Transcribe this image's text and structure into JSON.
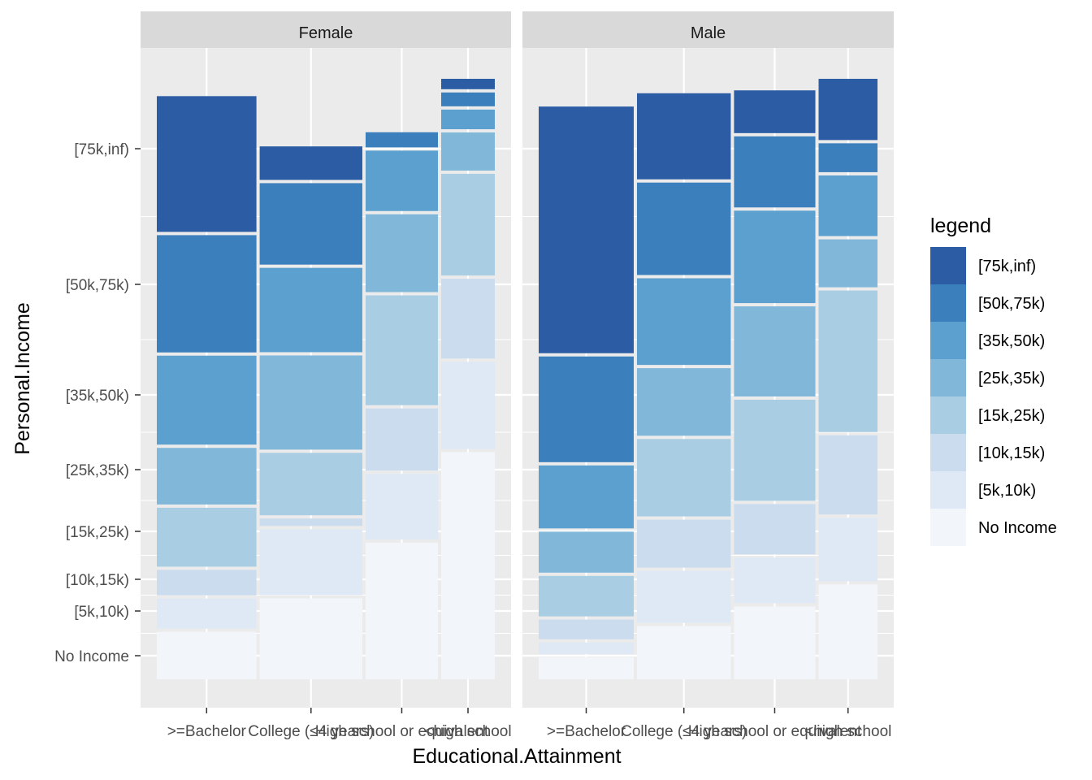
{
  "chart_data": {
    "type": "mosaic",
    "facets": [
      "Female",
      "Male"
    ],
    "xlabel": "Educational.Attainment",
    "ylabel": "Personal.Income",
    "categories": [
      ">=Bachelor",
      "College (≤4 years)",
      "High school or equivalent",
      "<high school"
    ],
    "category_labels": [
      ">=Bachelor",
      "College (≤4 years)",
      "High school or equivalent",
      "<high school"
    ],
    "income_levels": [
      "No Income",
      "[5k,10k)",
      "[10k,15k)",
      "[15k,25k)",
      "[25k,35k)",
      "[35k,50k)",
      "[50k,75k)",
      "[75k,inf)"
    ],
    "y_tick_labels": [
      "No Income",
      "[5k,10k)",
      "[10k,15k)",
      "[15k,25k)",
      "[25k,35k)",
      "[35k,50k)",
      "[50k,75k)",
      "[75k,inf)"
    ],
    "legend": {
      "title": "legend",
      "placement": "right",
      "entries": [
        "[75k,inf)",
        "[50k,75k)",
        "[35k,50k)",
        "[25k,35k)",
        "[15k,25k)",
        "[10k,15k)",
        "[5k,10k)",
        "No Income"
      ]
    },
    "colors": {
      "No Income": "#f2f6fa",
      "[5k,10k)": "#dfe9f5",
      "[10k,15k)": "#cbdcee",
      "[15k,25k)": "#a9cde2",
      "[25k,35k)": "#81b8da",
      "[35k,50k)": "#5ca0cf",
      "[50k,75k)": "#3b7fbd",
      "[75k,inf)": "#2b5ca4"
    },
    "panel_background": "#ebebeb",
    "strip_background": "#d9d9d9",
    "grid": true,
    "panels": [
      {
        "facet": "Female",
        "column_widths": [
          0.325,
          0.335,
          0.236,
          0.175
        ],
        "proportions": [
          [
            0.082,
            0.052,
            0.044,
            0.102,
            0.098,
            0.154,
            0.203,
            0.235
          ],
          [
            0.14,
            0.114,
            0.013,
            0.108,
            0.163,
            0.146,
            0.141,
            0.058
          ],
          [
            0.235,
            0.113,
            0.107,
            0.189,
            0.134,
            0.104,
            0.026,
            0.0
          ],
          [
            0.393,
            0.151,
            0.138,
            0.176,
            0.066,
            0.034,
            0.024,
            0.018
          ]
        ]
      },
      {
        "facet": "Male",
        "column_widths": [
          0.305,
          0.301,
          0.261,
          0.189
        ],
        "proportions": [
          [
            0.038,
            0.02,
            0.034,
            0.07,
            0.071,
            0.109,
            0.183,
            0.427
          ],
          [
            0.092,
            0.09,
            0.083,
            0.134,
            0.117,
            0.15,
            0.16,
            0.149
          ],
          [
            0.126,
            0.079,
            0.087,
            0.175,
            0.156,
            0.16,
            0.123,
            0.074
          ],
          [
            0.164,
            0.11,
            0.137,
            0.245,
            0.083,
            0.105,
            0.05,
            0.106
          ]
        ]
      }
    ]
  }
}
